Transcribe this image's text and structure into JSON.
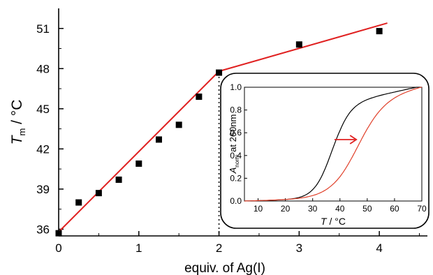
{
  "chart_data": [
    {
      "type": "scatter",
      "xlabel": "equiv. of Ag(I)",
      "ylabel_main": "T",
      "ylabel_sub": "m",
      "ylabel_unit": " / °C",
      "xlim": [
        0,
        4.6
      ],
      "ylim": [
        35.5,
        52.5
      ],
      "x_ticks": [
        0,
        1,
        2,
        3,
        4
      ],
      "y_ticks": [
        36,
        39,
        42,
        45,
        48,
        51
      ],
      "points": [
        {
          "x": 0.0,
          "y": 35.7
        },
        {
          "x": 0.25,
          "y": 38.0
        },
        {
          "x": 0.5,
          "y": 38.7
        },
        {
          "x": 0.75,
          "y": 39.7
        },
        {
          "x": 1.0,
          "y": 40.9
        },
        {
          "x": 1.25,
          "y": 42.7
        },
        {
          "x": 1.5,
          "y": 43.8
        },
        {
          "x": 1.75,
          "y": 45.9
        },
        {
          "x": 2.0,
          "y": 47.7
        },
        {
          "x": 3.0,
          "y": 49.8
        },
        {
          "x": 4.0,
          "y": 50.8
        }
      ],
      "fit_lines": [
        {
          "x": [
            0.0,
            2.0
          ],
          "y": [
            35.8,
            47.8
          ],
          "color": "#e02020"
        },
        {
          "x": [
            2.0,
            4.1
          ],
          "y": [
            47.8,
            51.4
          ],
          "color": "#e02020"
        }
      ],
      "vline_x": 2.0
    },
    {
      "type": "line",
      "xlabel_main": "T",
      "xlabel_unit": " / °C",
      "ylabel_main": "A",
      "ylabel_sub": "norm",
      "ylabel_rest": " at 260nm",
      "xlim": [
        5,
        70
      ],
      "ylim": [
        0,
        1.0
      ],
      "x_ticks": [
        10,
        20,
        30,
        40,
        50,
        60,
        70
      ],
      "y_ticks": [
        "0.0",
        "0.2",
        "0.4",
        "0.6",
        "0.8",
        "1.0"
      ],
      "series": [
        {
          "color": "#000000",
          "tm": 37,
          "width": 3.2
        },
        {
          "color": "#e0402a",
          "tm": 46,
          "width": 5.0
        }
      ],
      "arrow": {
        "x_from": 38,
        "x_to": 46,
        "y": 0.54,
        "color": "#e02020"
      }
    }
  ]
}
